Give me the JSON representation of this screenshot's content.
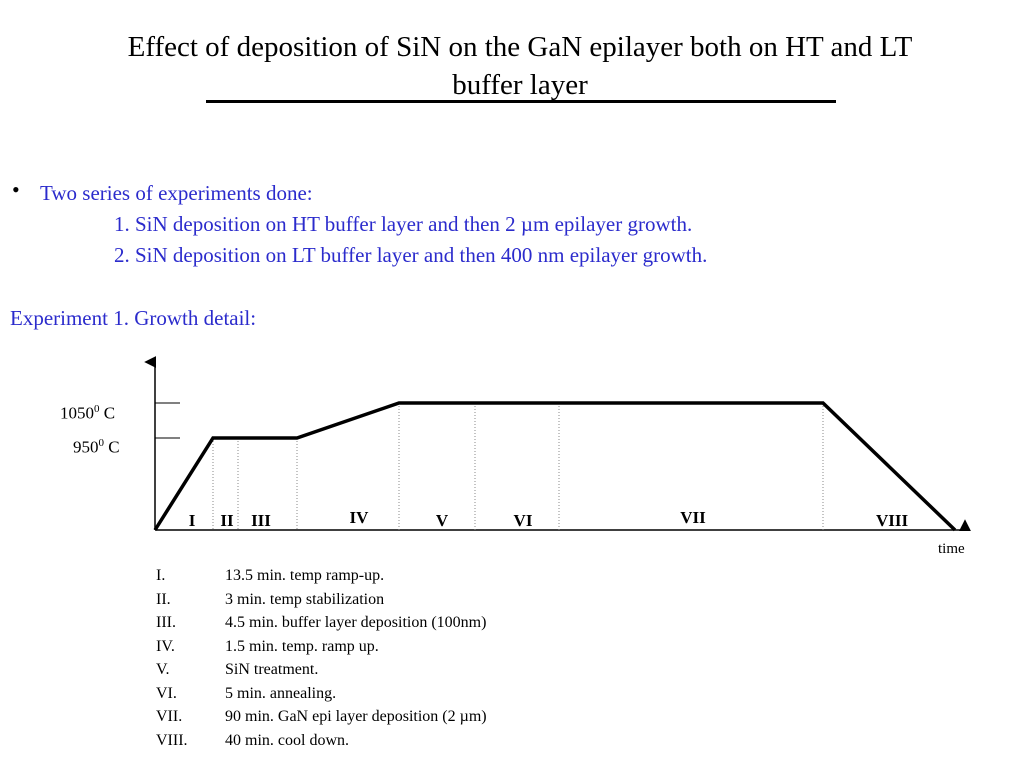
{
  "slide": {
    "title": "Effect of deposition of SiN on the GaN epilayer both on HT and LT buffer layer",
    "intro": "Two series of experiments done:",
    "series": [
      "1. SiN deposition on HT buffer layer and then 2 µm epilayer growth.",
      "2. SiN deposition on LT buffer layer and then 400 nm epilayer growth."
    ],
    "experiment_heading": "Experiment 1. Growth detail:"
  },
  "diagram": {
    "y_labels": [
      {
        "base": "1050",
        "sup": "0",
        "unit": " C"
      },
      {
        "base": "950",
        "sup": "0",
        "unit": " C"
      }
    ],
    "x_label": "time",
    "segments": [
      "I",
      "II",
      "III",
      "IV",
      "V",
      "VI",
      "VII",
      "VIII"
    ]
  },
  "steps": [
    {
      "num": "I.",
      "text": "13.5 min. temp ramp-up."
    },
    {
      "num": "II.",
      "text": "3  min. temp stabilization"
    },
    {
      "num": "III.",
      "text": "4.5 min. buffer layer deposition (100nm)"
    },
    {
      "num": "IV.",
      "text": "1.5 min. temp. ramp up."
    },
    {
      "num": "V.",
      "text": "SiN treatment."
    },
    {
      "num": "VI.",
      "text": "5 min. annealing."
    },
    {
      "num": "VII.",
      "text": "90 min. GaN epi layer deposition (2 µm)"
    },
    {
      "num": "VIII.",
      "text": "40 min. cool down."
    }
  ]
}
